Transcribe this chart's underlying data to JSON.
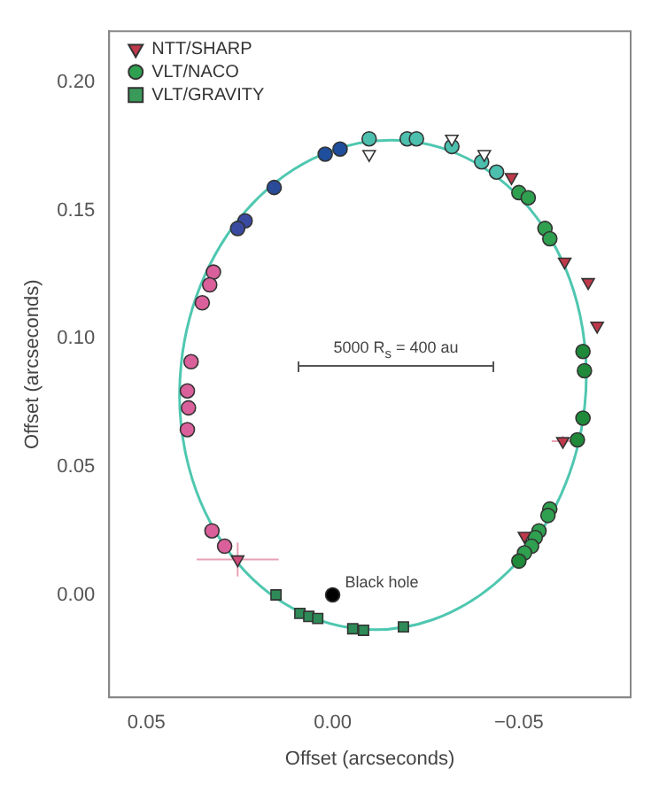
{
  "chart_data": {
    "type": "scatter",
    "xlabel": "Offset (arcseconds)",
    "ylabel": "Offset (arcseconds)",
    "xlim": [
      0.06,
      -0.08
    ],
    "ylim": [
      -0.04,
      0.22
    ],
    "xticks": [
      {
        "value": 0.05,
        "label": "0.05"
      },
      {
        "value": 0,
        "label": "0.00"
      },
      {
        "value": -0.05,
        "label": "−0.05"
      }
    ],
    "yticks": [
      {
        "value": 0,
        "label": "0.00"
      },
      {
        "value": 0.05,
        "label": "0.05"
      },
      {
        "value": 0.1,
        "label": "0.10"
      },
      {
        "value": 0.15,
        "label": "0.15"
      },
      {
        "value": 0.2,
        "label": "0.20"
      }
    ],
    "grid": false,
    "legend": "top left",
    "annotations": [
      {
        "text": "Black hole",
        "x": 0,
        "y": 0
      },
      "5000 R$_{s}$ = 400 au"
    ],
    "series": [
      {
        "name": "NTT/SHARP",
        "type": "scatter",
        "marker": "triangle",
        "color": "#c0394b",
        "x": [
          -0.048,
          -0.0623,
          -0.0686,
          -0.071,
          -0.0618,
          -0.0515,
          0.0255,
          -0.0098,
          -0.032,
          -0.0407
        ],
        "values": [
          0.163,
          0.13,
          0.122,
          0.105,
          0.06,
          0.023,
          0.0138,
          0.172,
          0.178,
          0.172
        ],
        "colors": [
          "#c0394b",
          "#c0394b",
          "#c0394b",
          "#c0394b",
          "#c0394b",
          "#c0394b",
          "#d04a7a",
          "#ffffff",
          "#ffffff",
          "#ffffff"
        ],
        "errors": [
          null,
          null,
          null,
          null,
          0.002,
          null,
          0.0066,
          null,
          null,
          null
        ],
        "xerrors": [
          null,
          null,
          null,
          null,
          0.003,
          null,
          0.011,
          null,
          null,
          null
        ]
      },
      {
        "name": "VLT/NACO",
        "type": "scatter",
        "marker": "circle",
        "color": "#2fa050",
        "x": [
          0.002,
          -0.002,
          0.0157,
          0.0235,
          0.0255,
          0.032,
          0.033,
          0.035,
          0.038,
          0.039,
          0.0387,
          0.039,
          0.0324,
          0.029,
          -0.0098,
          -0.02,
          -0.0225,
          -0.032,
          -0.04,
          -0.044,
          -0.05,
          -0.0525,
          -0.057,
          -0.0583,
          -0.0672,
          -0.0676,
          -0.0672,
          -0.0657,
          -0.0583,
          -0.0578,
          -0.0554,
          -0.0544,
          -0.0534,
          -0.0515,
          -0.05
        ],
        "values": [
          0.172,
          0.174,
          0.159,
          0.146,
          0.143,
          0.126,
          0.121,
          0.114,
          0.091,
          0.0796,
          0.073,
          0.0645,
          0.025,
          0.019,
          0.178,
          0.178,
          0.178,
          0.175,
          0.169,
          0.165,
          0.157,
          0.155,
          0.143,
          0.139,
          0.095,
          0.0875,
          0.069,
          0.0605,
          0.0335,
          0.031,
          0.025,
          0.0224,
          0.019,
          0.0164,
          0.0132
        ],
        "colors": [
          "#1f4e9c",
          "#1f4e9c",
          "#2a4a9a",
          "#3a4aa0",
          "#3a4aa0",
          "#d9609a",
          "#d9609a",
          "#d9609a",
          "#d9609a",
          "#d9609a",
          "#d9609a",
          "#d9609a",
          "#d9609a",
          "#d9609a",
          "#4cbfae",
          "#4cbfae",
          "#4cbfae",
          "#4cbfae",
          "#4cbfae",
          "#4cbfae",
          "#2fa050",
          "#2fa050",
          "#2fa050",
          "#2fa050",
          "#1f8a3a",
          "#1f8a3a",
          "#1f8a3a",
          "#1f8a3a",
          "#2fa050",
          "#2fa050",
          "#2fa050",
          "#2fa050",
          "#2fa050",
          "#2fa050",
          "#1f8a3a"
        ]
      },
      {
        "name": "VLT/GRAVITY",
        "type": "scatter",
        "marker": "square",
        "color": "#3a9a5a",
        "x": [
          0.0152,
          0.0088,
          0.0064,
          0.004,
          -0.0054,
          -0.0083,
          -0.019
        ],
        "values": [
          0.0,
          -0.0072,
          -0.0084,
          -0.0092,
          -0.0132,
          -0.0138,
          -0.0125
        ],
        "colors": [
          "#2e8b57",
          "#2e8b57",
          "#2e8b57",
          "#2e8b57",
          "#2e8b57",
          "#2e8b57",
          "#2e8b57"
        ]
      },
      {
        "type": "scatter",
        "marker": "circle",
        "color": "#000000",
        "x": [
          0
        ],
        "values": [
          0
        ]
      }
    ]
  }
}
